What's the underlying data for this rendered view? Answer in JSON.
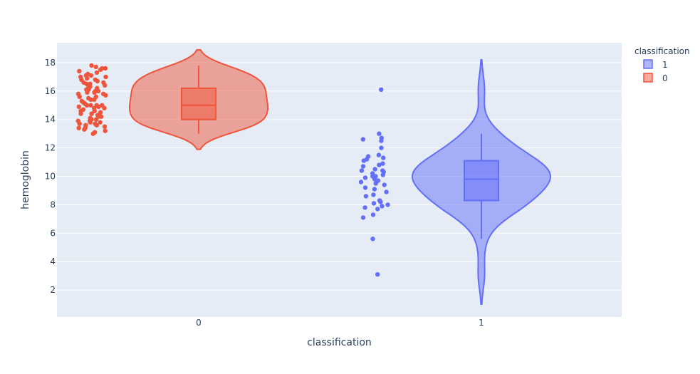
{
  "chart_data": {
    "type": "violin",
    "xlabel": "classification",
    "ylabel": "hemoglobin",
    "categories": [
      "0",
      "1"
    ],
    "ylim": [
      0.1,
      19.4
    ],
    "yticks": [
      2,
      4,
      6,
      8,
      10,
      12,
      14,
      16,
      18
    ],
    "grid": true,
    "legend": {
      "title": "classification",
      "placement": "top-right",
      "entries": [
        "1",
        "0"
      ]
    },
    "series": [
      {
        "name": "1",
        "category": "1",
        "color": "#636efa",
        "fill": "#636efa",
        "box": {
          "min": 5.6,
          "q1": 8.3,
          "median": 9.8,
          "q3": 11.1,
          "max": 13.0
        },
        "kde_range": [
          1.0,
          18.2
        ],
        "points": [
          16.1,
          13.0,
          12.7,
          12.6,
          12.5,
          12.0,
          11.5,
          11.4,
          11.3,
          11.2,
          11.1,
          10.9,
          10.8,
          10.7,
          10.5,
          10.4,
          10.4,
          10.3,
          10.2,
          10.1,
          10.0,
          10.0,
          9.9,
          9.8,
          9.7,
          9.6,
          9.5,
          9.4,
          9.2,
          9.1,
          8.9,
          8.7,
          8.6,
          8.3,
          8.2,
          8.1,
          8.0,
          7.9,
          7.8,
          7.7,
          7.3,
          7.1,
          5.6,
          3.1
        ]
      },
      {
        "name": "0",
        "category": "0",
        "color": "#ef553b",
        "fill": "#ef553b",
        "box": {
          "min": 13.0,
          "q1": 14.0,
          "median": 15.0,
          "q3": 16.2,
          "max": 17.8
        },
        "kde_range": [
          11.9,
          18.9
        ],
        "points": [
          17.8,
          17.7,
          17.6,
          17.5,
          17.4,
          17.2,
          17.1,
          17.0,
          17.0,
          16.9,
          16.8,
          16.7,
          16.6,
          16.5,
          16.5,
          16.4,
          16.3,
          16.2,
          16.1,
          16.1,
          16.0,
          15.9,
          15.8,
          15.7,
          15.6,
          15.5,
          15.4,
          15.3,
          15.2,
          15.1,
          15.0,
          15.0,
          15.0,
          14.9,
          14.8,
          14.7,
          14.6,
          14.5,
          14.4,
          14.3,
          14.2,
          14.1,
          14.0,
          14.0,
          13.9,
          13.8,
          13.7,
          13.6,
          13.5,
          13.4,
          13.3,
          13.2,
          13.1,
          13.0,
          17.3,
          16.8,
          16.3,
          15.8,
          15.4,
          14.9,
          14.4,
          13.9,
          13.6,
          13.4,
          17.6,
          16.6,
          15.6,
          14.6,
          13.8,
          16.0,
          15.0,
          14.2,
          13.7,
          17.1,
          15.9,
          14.8
        ]
      }
    ]
  }
}
